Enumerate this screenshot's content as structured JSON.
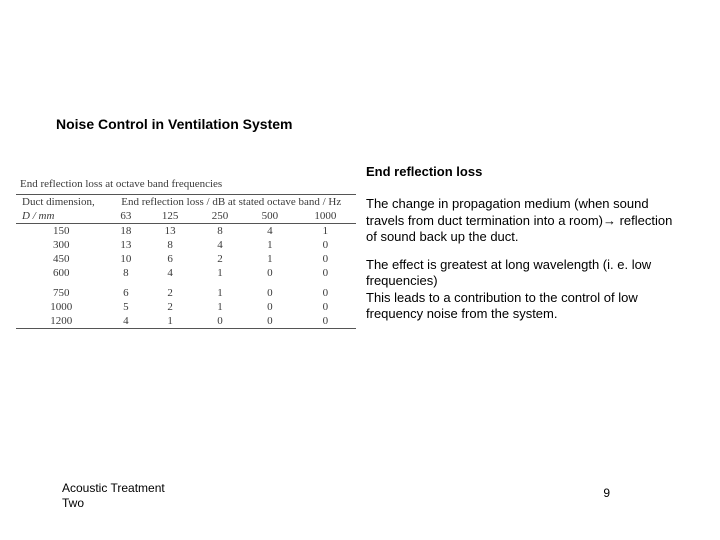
{
  "slide": {
    "title": "Noise Control in Ventilation System"
  },
  "table": {
    "caption": "End reflection loss at octave band frequencies",
    "left_header_line1": "Duct dimension,",
    "left_header_line2": "D / mm",
    "right_header": "End reflection loss / dB at stated octave band / Hz",
    "freq_labels": [
      "63",
      "125",
      "250",
      "500",
      "1000"
    ],
    "rows_group1": [
      {
        "d": "150",
        "v": [
          "18",
          "13",
          "8",
          "4",
          "1"
        ]
      },
      {
        "d": "300",
        "v": [
          "13",
          "8",
          "4",
          "1",
          "0"
        ]
      },
      {
        "d": "450",
        "v": [
          "10",
          "6",
          "2",
          "1",
          "0"
        ]
      },
      {
        "d": "600",
        "v": [
          "8",
          "4",
          "1",
          "0",
          "0"
        ]
      }
    ],
    "rows_group2": [
      {
        "d": "750",
        "v": [
          "6",
          "2",
          "1",
          "0",
          "0"
        ]
      },
      {
        "d": "1000",
        "v": [
          "5",
          "2",
          "1",
          "0",
          "0"
        ]
      },
      {
        "d": "1200",
        "v": [
          "4",
          "1",
          "0",
          "0",
          "0"
        ]
      }
    ],
    "style": {
      "border_color": "#555555",
      "text_color": "#3a3a3a",
      "font_family": "Times New Roman",
      "font_size_pt": 11
    }
  },
  "text": {
    "heading": "End reflection loss",
    "para1_a": "The change in propagation medium (when sound travels from duct termination into a room)",
    "arrow": "→",
    "para1_b": " reflection of sound back up the duct.",
    "para2": "The effect is greatest at long wavelength (i. e. low frequencies)\nThis leads to a contribution to the control of low frequency noise from the system."
  },
  "footer": {
    "left": "Acoustic Treatment\nTwo",
    "page": "9"
  }
}
